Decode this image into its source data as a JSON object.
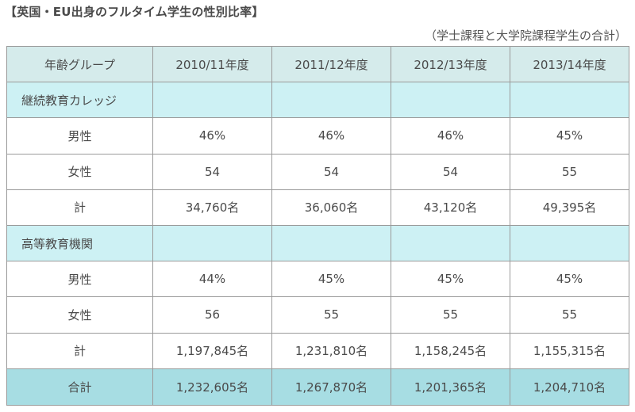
{
  "title": "【英国・EU出身のフルタイム学生の性別比率】",
  "subtitle": "（学士課程と大学院課程学生の合計）",
  "table": {
    "headers": [
      "年齢グループ",
      "2010/11年度",
      "2011/12年度",
      "2012/13年度",
      "2013/14年度"
    ],
    "sections": [
      {
        "name": "継続教育カレッジ",
        "rows": [
          {
            "label": "男性",
            "values": [
              "46%",
              "46%",
              "46%",
              "45%"
            ]
          },
          {
            "label": "女性",
            "values": [
              "54",
              "54",
              "54",
              "55"
            ]
          },
          {
            "label": "計",
            "values": [
              "34,760名",
              "36,060名",
              "43,120名",
              "49,395名"
            ]
          }
        ]
      },
      {
        "name": "高等教育機関",
        "rows": [
          {
            "label": "男性",
            "values": [
              "44%",
              "45%",
              "45%",
              "45%"
            ]
          },
          {
            "label": "女性",
            "values": [
              "56",
              "55",
              "55",
              "55"
            ]
          },
          {
            "label": "計",
            "values": [
              "1,197,845名",
              "1,231,810名",
              "1,158,245名",
              "1,155,315名"
            ]
          }
        ]
      }
    ],
    "total": {
      "label": "合計",
      "values": [
        "1,232,605名",
        "1,267,870名",
        "1,201,365名",
        "1,204,710名"
      ]
    }
  },
  "colors": {
    "header_bg": "#d5ebeb",
    "section_bg": "#cdf1f4",
    "total_bg": "#a7dde3",
    "border": "#9a9a9a"
  }
}
